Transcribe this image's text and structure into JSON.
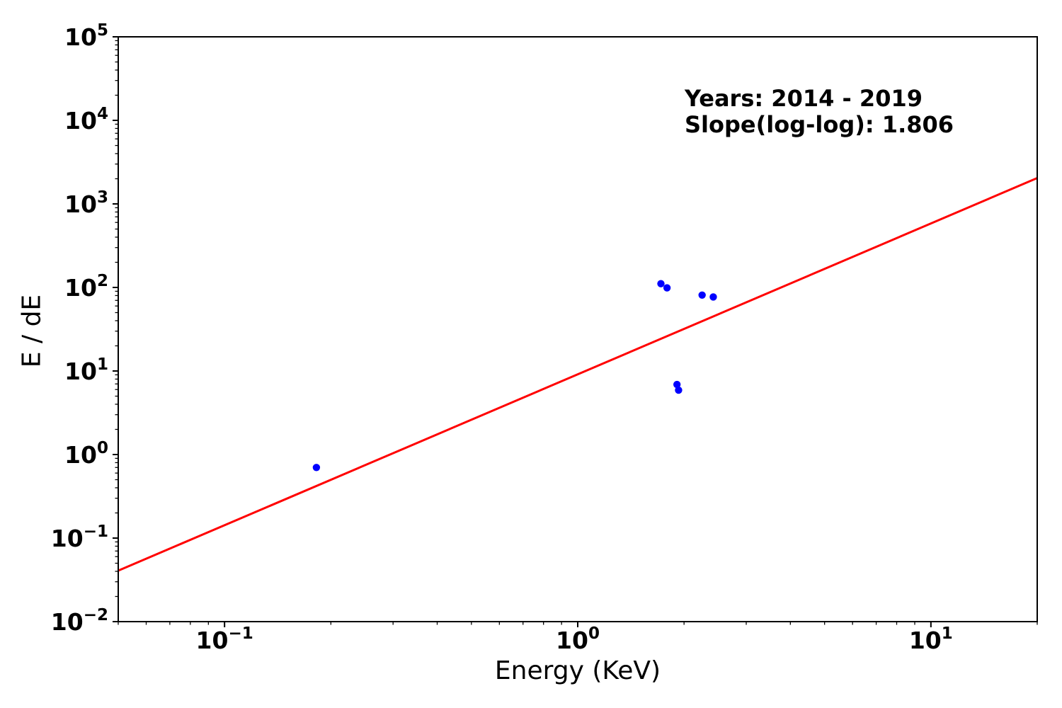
{
  "chart_data": {
    "type": "scatter",
    "title": "",
    "xlabel": "Energy (KeV)",
    "ylabel": "E / dE",
    "xscale": "log",
    "yscale": "log",
    "xlim": [
      0.05,
      20
    ],
    "ylim": [
      0.01,
      100000
    ],
    "x_tick_exponents": [
      -1,
      0,
      1
    ],
    "y_tick_exponents": [
      -2,
      -1,
      0,
      1,
      2,
      3,
      4,
      5
    ],
    "grid": false,
    "legend": null,
    "marker_color": "#0000ff",
    "points": {
      "x": [
        0.182,
        1.72,
        1.79,
        2.25,
        2.42,
        1.91,
        1.93
      ],
      "y": [
        0.7,
        111,
        99,
        81,
        77,
        6.9,
        5.9
      ]
    },
    "fit_line": {
      "slope_loglog": 1.806,
      "intercept_log10_at_x1": 0.96,
      "x_range": [
        0.05,
        20
      ],
      "color": "#ff0000"
    },
    "annotation": {
      "line1": "Years: 2014 - 2019",
      "line2": "Slope(log-log): 1.806"
    },
    "axis_color": "#000000"
  }
}
